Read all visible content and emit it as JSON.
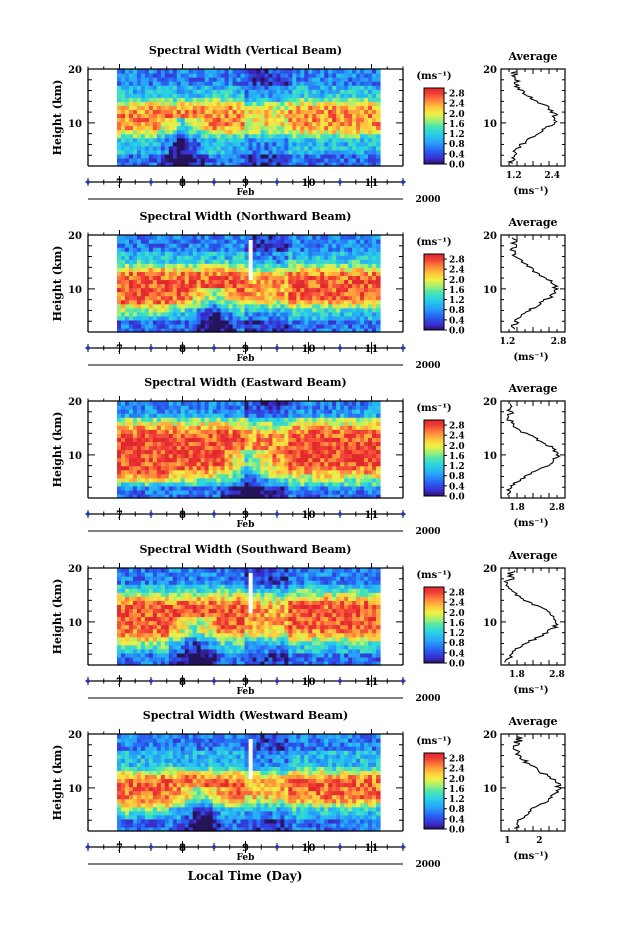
{
  "figure": {
    "xlabel": "Local Time (Day)",
    "month_label": "Feb",
    "year_label": "2000",
    "colorbar_unit": "(ms⁻¹)",
    "avg_title": "Average",
    "avg_unit": "(ms⁻¹)"
  },
  "chart_data": [
    {
      "type": "heatmap",
      "title": "Spectral Width (Vertical Beam)",
      "ylabel": "Height (km)",
      "xlabel": "Local Time (Day)",
      "x_ticks": [
        "7",
        "8",
        "9",
        "10",
        "11"
      ],
      "y_ticks": [
        "10",
        "20"
      ],
      "xlim": [
        6.5,
        11.5
      ],
      "ylim": [
        2,
        20
      ],
      "colorbar": {
        "ticks": [
          "0.0",
          "0.4",
          "0.8",
          "1.2",
          "1.6",
          "2.0",
          "2.4",
          "2.8"
        ],
        "range": [
          0,
          3.0
        ]
      },
      "profile": {
        "title": "Average",
        "x_ticks": [
          "1.2",
          "2.4"
        ],
        "xlim": [
          0.8,
          2.8
        ],
        "peak_height_km": 11,
        "peak_value": 2.5,
        "min_value": 1.1
      },
      "pattern": {
        "band_low": 8,
        "band_high": 14,
        "band_intensity": 0.85,
        "left_lower_tongue": false,
        "notch_day": 8.0,
        "gap_column": false
      }
    },
    {
      "type": "heatmap",
      "title": "Spectral Width (Northward Beam)",
      "ylabel": "Height (km)",
      "xlabel": "Local Time (Day)",
      "x_ticks": [
        "7",
        "8",
        "9",
        "10",
        "11"
      ],
      "y_ticks": [
        "10",
        "20"
      ],
      "xlim": [
        6.5,
        11.5
      ],
      "ylim": [
        2,
        20
      ],
      "colorbar": {
        "ticks": [
          "0.0",
          "0.4",
          "0.8",
          "1.2",
          "1.6",
          "2.0",
          "2.4",
          "2.8"
        ],
        "range": [
          0,
          3.0
        ]
      },
      "profile": {
        "title": "Average",
        "x_ticks": [
          "1.2",
          "2.8"
        ],
        "xlim": [
          1.0,
          3.0
        ],
        "peak_height_km": 10,
        "peak_value": 2.7,
        "min_value": 1.3
      },
      "pattern": {
        "band_low": 7,
        "band_high": 14,
        "band_intensity": 1.0,
        "left_lower_tongue": true,
        "notch_day": 8.5,
        "gap_column": true
      }
    },
    {
      "type": "heatmap",
      "title": "Spectral Width (Eastward Beam)",
      "ylabel": "Height (km)",
      "xlabel": "Local Time (Day)",
      "x_ticks": [
        "7",
        "8",
        "9",
        "10",
        "11"
      ],
      "y_ticks": [
        "10",
        "20"
      ],
      "xlim": [
        6.5,
        11.5
      ],
      "ylim": [
        2,
        20
      ],
      "colorbar": {
        "ticks": [
          "0.0",
          "0.4",
          "0.8",
          "1.2",
          "1.6",
          "2.0",
          "2.4",
          "2.8"
        ],
        "range": [
          0,
          3.0
        ]
      },
      "profile": {
        "title": "Average",
        "x_ticks": [
          "1.8",
          "2.8"
        ],
        "xlim": [
          1.4,
          3.0
        ],
        "peak_height_km": 10,
        "peak_value": 2.8,
        "min_value": 1.5
      },
      "pattern": {
        "band_low": 6,
        "band_high": 16,
        "band_intensity": 1.05,
        "left_lower_tongue": true,
        "notch_day": 9.0,
        "gap_column": false
      }
    },
    {
      "type": "heatmap",
      "title": "Spectral Width (Southward Beam)",
      "ylabel": "Height (km)",
      "xlabel": "Local Time (Day)",
      "x_ticks": [
        "7",
        "8",
        "9",
        "10",
        "11"
      ],
      "y_ticks": [
        "10",
        "20"
      ],
      "xlim": [
        6.5,
        11.5
      ],
      "ylim": [
        2,
        20
      ],
      "colorbar": {
        "ticks": [
          "0.0",
          "0.4",
          "0.8",
          "1.2",
          "1.6",
          "2.0",
          "2.4",
          "2.8"
        ],
        "range": [
          0,
          3.0
        ]
      },
      "profile": {
        "title": "Average",
        "x_ticks": [
          "1.8",
          "2.8"
        ],
        "xlim": [
          1.4,
          3.0
        ],
        "peak_height_km": 10,
        "peak_value": 2.8,
        "min_value": 1.5
      },
      "pattern": {
        "band_low": 7,
        "band_high": 15,
        "band_intensity": 1.0,
        "left_lower_tongue": true,
        "notch_day": 8.2,
        "gap_column": true
      }
    },
    {
      "type": "heatmap",
      "title": "Spectral Width (Westward Beam)",
      "ylabel": "Height (km)",
      "xlabel": "Local Time (Day)",
      "x_ticks": [
        "7",
        "8",
        "9",
        "10",
        "11"
      ],
      "y_ticks": [
        "10",
        "20"
      ],
      "xlim": [
        6.5,
        11.5
      ],
      "ylim": [
        2,
        20
      ],
      "colorbar": {
        "ticks": [
          "0.0",
          "0.4",
          "0.8",
          "1.2",
          "1.6",
          "2.0",
          "2.4",
          "2.8"
        ],
        "range": [
          0,
          3.0
        ]
      },
      "profile": {
        "title": "Average",
        "x_ticks": [
          "1",
          "2"
        ],
        "xlim": [
          0.8,
          2.8
        ],
        "peak_height_km": 10,
        "peak_value": 2.6,
        "min_value": 1.2
      },
      "pattern": {
        "band_low": 7,
        "band_high": 13,
        "band_intensity": 0.95,
        "left_lower_tongue": true,
        "notch_day": 8.3,
        "gap_column": true
      }
    }
  ]
}
